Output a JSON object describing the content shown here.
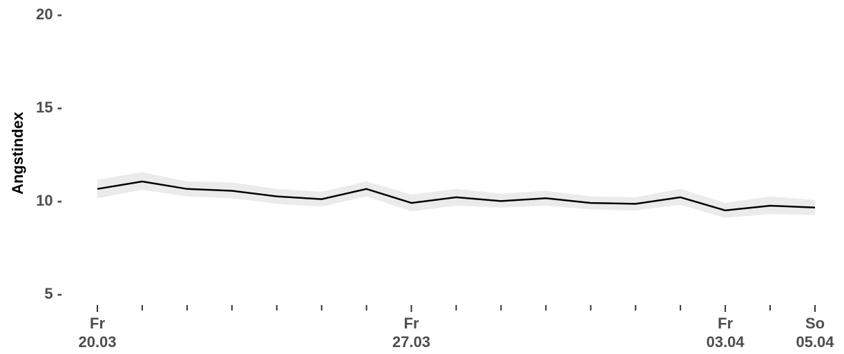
{
  "chart_data": {
    "type": "line",
    "title": "",
    "ylabel": "Angstindex",
    "xlabel": "",
    "ylim": [
      5,
      20
    ],
    "y_ticks": [
      5,
      10,
      15,
      20
    ],
    "y_tick_labels": [
      "5 -",
      "10 -",
      "15 -",
      "20 -"
    ],
    "x": [
      "2020-03-20",
      "2020-03-21",
      "2020-03-22",
      "2020-03-23",
      "2020-03-24",
      "2020-03-25",
      "2020-03-26",
      "2020-03-27",
      "2020-03-28",
      "2020-03-29",
      "2020-03-30",
      "2020-03-31",
      "2020-04-01",
      "2020-04-02",
      "2020-04-03",
      "2020-04-04",
      "2020-04-05"
    ],
    "x_tick_labels": [
      {
        "x": "2020-03-20",
        "line1": "Fr",
        "line2": "20.03"
      },
      {
        "x": "2020-03-27",
        "line1": "Fr",
        "line2": "27.03"
      },
      {
        "x": "2020-04-03",
        "line1": "Fr",
        "line2": "03.04"
      },
      {
        "x": "2020-04-05",
        "line1": "So",
        "line2": "05.04"
      }
    ],
    "series": [
      {
        "values": [
          10.6,
          11.0,
          10.6,
          10.5,
          10.2,
          10.05,
          10.6,
          9.85,
          10.15,
          9.95,
          10.1,
          9.85,
          9.8,
          10.15,
          9.45,
          9.7,
          9.6
        ],
        "lower": [
          10.1,
          10.55,
          10.2,
          10.1,
          9.8,
          9.65,
          10.2,
          9.4,
          9.7,
          9.6,
          9.7,
          9.5,
          9.45,
          9.75,
          9.05,
          9.25,
          9.2
        ],
        "upper": [
          11.1,
          11.5,
          11.0,
          10.95,
          10.6,
          10.45,
          11.0,
          10.3,
          10.6,
          10.35,
          10.5,
          10.2,
          10.15,
          10.6,
          9.85,
          10.2,
          10.0
        ]
      }
    ],
    "colors": {
      "line": "#000000",
      "ribbon": "#ebebeb"
    },
    "grid": false,
    "legend": "none"
  }
}
